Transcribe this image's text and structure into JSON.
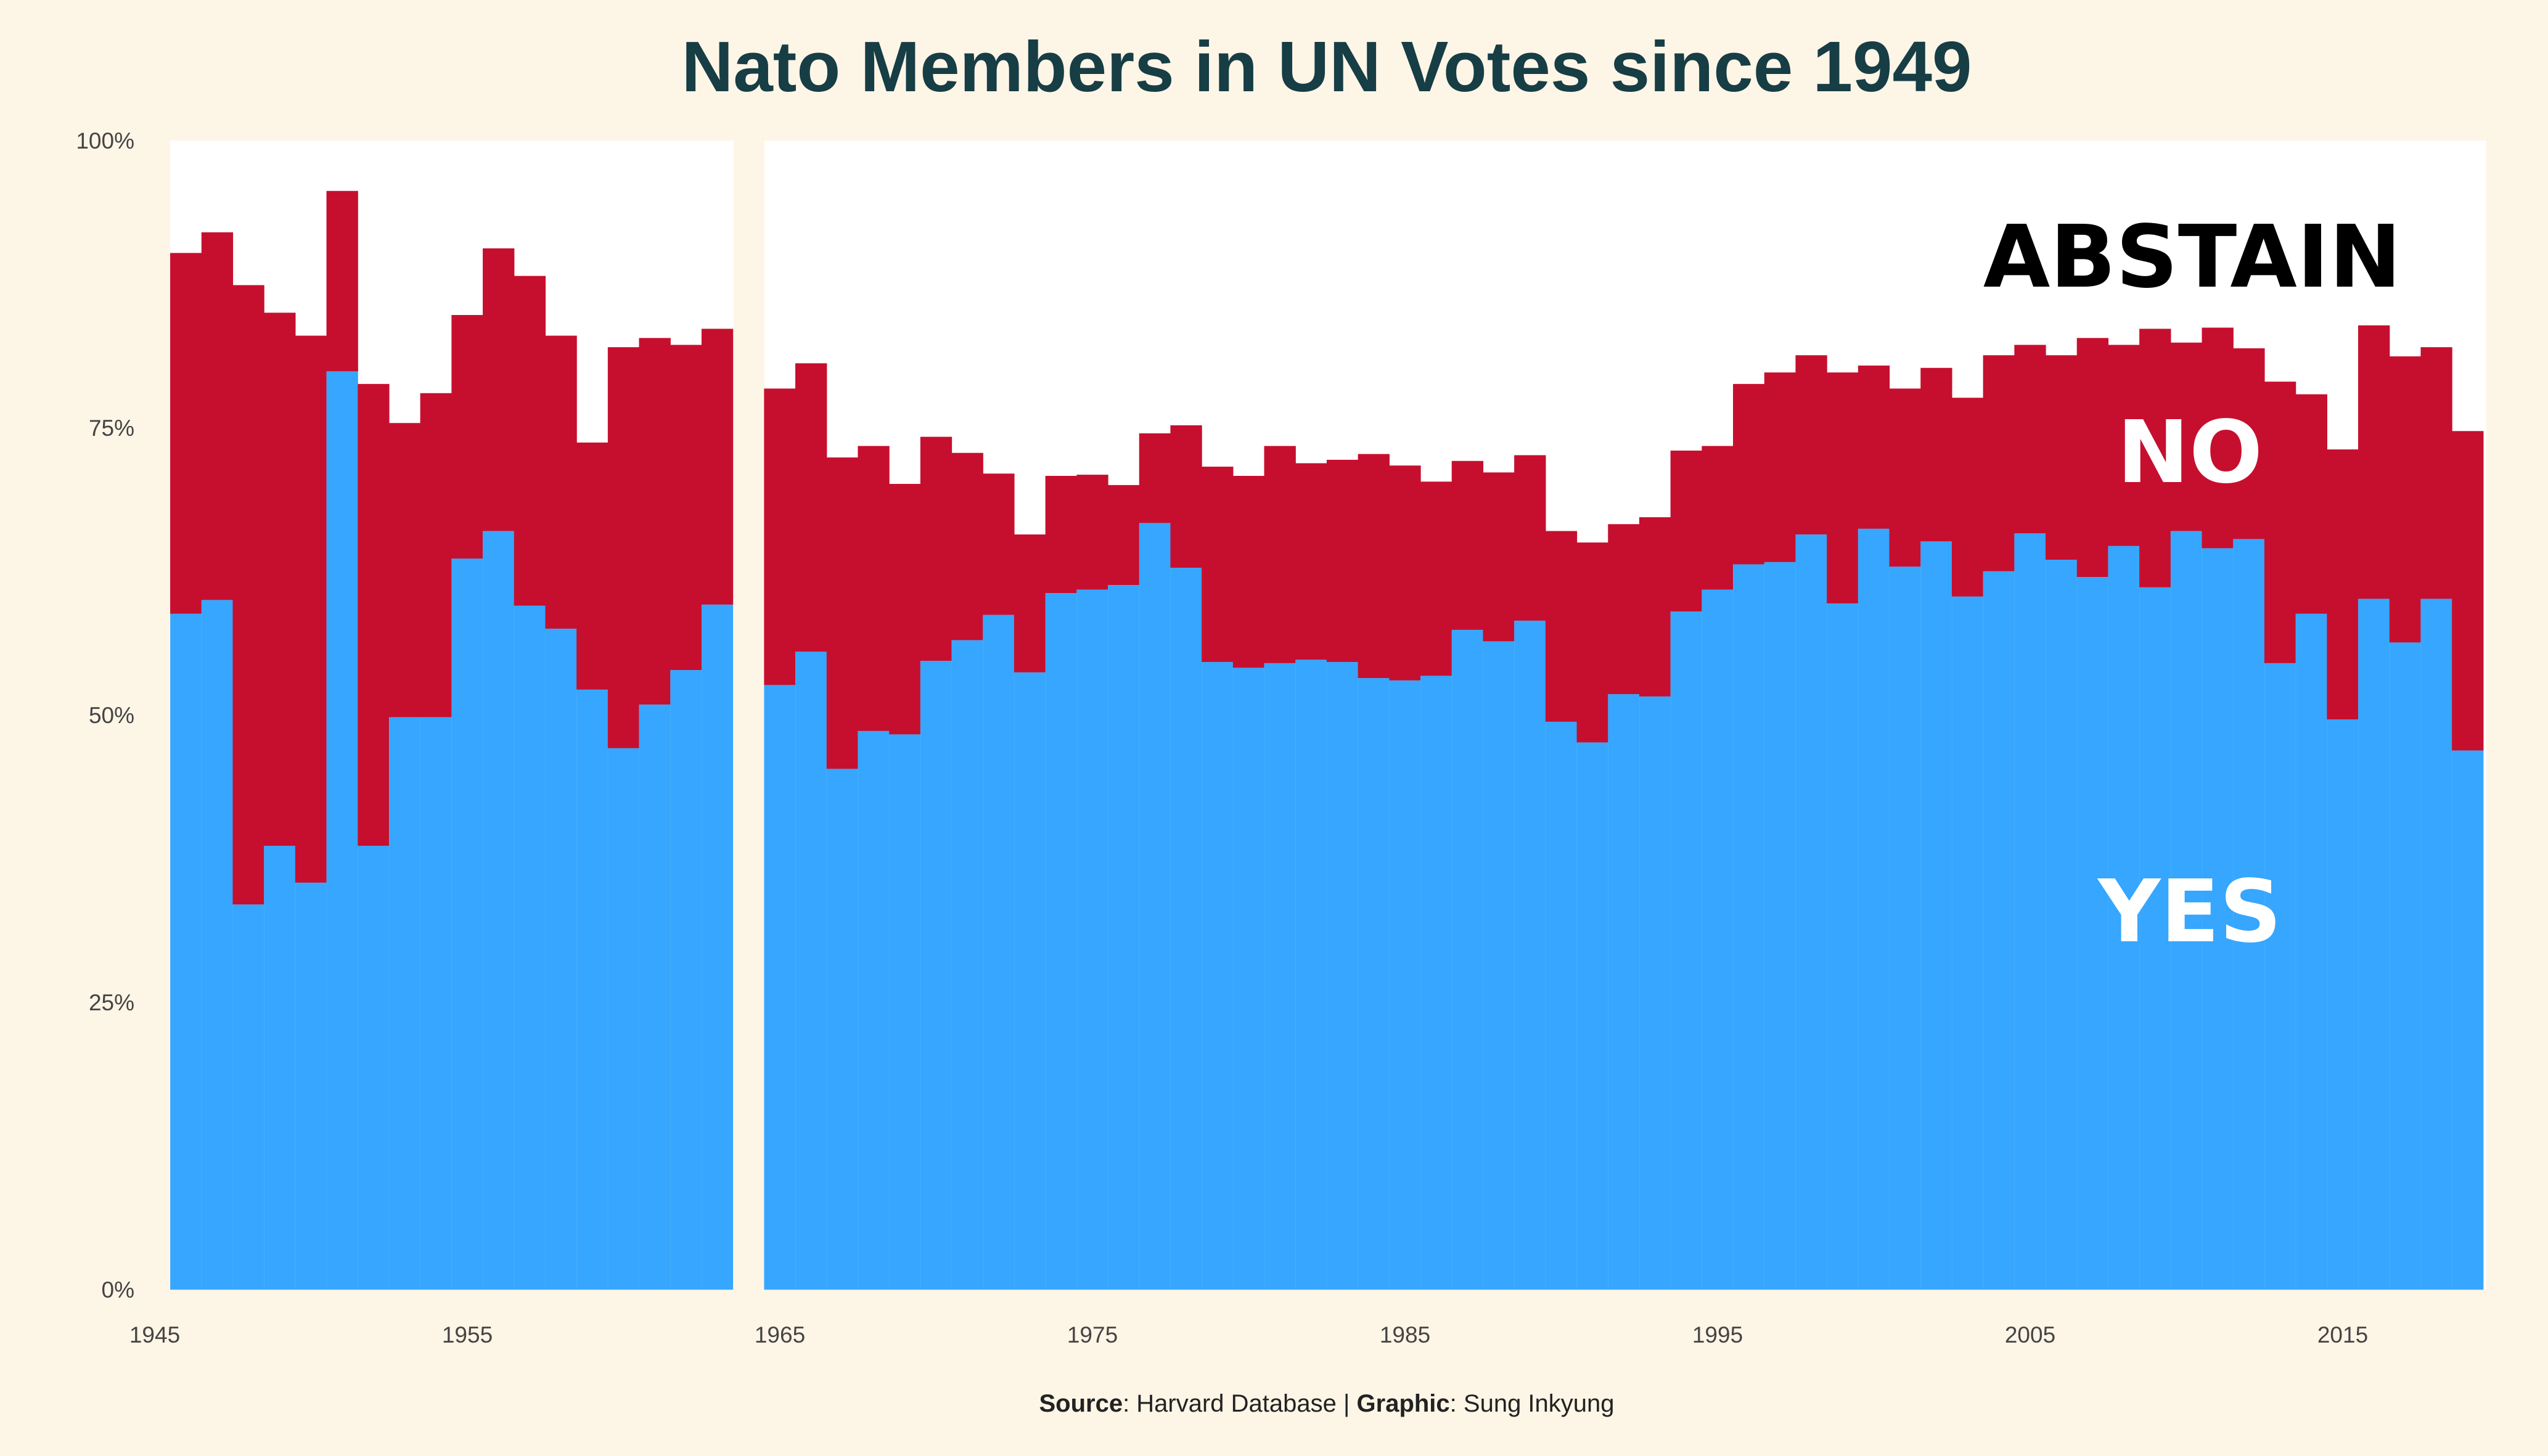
{
  "chart_data": {
    "type": "bar",
    "title": "Nato Members in UN Votes since 1949",
    "xlim": [
      1945,
      2019
    ],
    "ylim": [
      0,
      100
    ],
    "x_ticks": [
      "1945",
      "1955",
      "1965",
      "1975",
      "1985",
      "1995",
      "2005",
      "2015"
    ],
    "y_ticks": [
      "0%",
      "25%",
      "50%",
      "75%",
      "100%"
    ],
    "category_labels": {
      "yes": "YES",
      "no": "NO",
      "abstain": "ABSTAIN"
    },
    "colors": {
      "yes": "#36a6fe",
      "no": "#c60f2e",
      "abstain": "#ffffff",
      "background": "#fdf5e6",
      "title": "#173d45"
    },
    "x": [
      1946,
      1947,
      1948,
      1949,
      1950,
      1951,
      1952,
      1953,
      1954,
      1955,
      1956,
      1957,
      1958,
      1959,
      1960,
      1961,
      1962,
      1963,
      1965,
      1966,
      1967,
      1968,
      1969,
      1970,
      1971,
      1972,
      1973,
      1974,
      1975,
      1976,
      1977,
      1978,
      1979,
      1980,
      1981,
      1982,
      1983,
      1984,
      1985,
      1986,
      1987,
      1988,
      1989,
      1990,
      1991,
      1992,
      1993,
      1994,
      1995,
      1996,
      1997,
      1998,
      1999,
      2000,
      2001,
      2002,
      2003,
      2004,
      2005,
      2006,
      2007,
      2008,
      2009,
      2010,
      2011,
      2012,
      2013,
      2014,
      2015,
      2016,
      2017,
      2018,
      2019
    ],
    "series": [
      {
        "name": "YES",
        "values": [
          58.8,
          60.0,
          33.5,
          38.6,
          35.4,
          79.9,
          38.6,
          49.8,
          49.8,
          63.6,
          66.0,
          59.5,
          57.5,
          52.2,
          47.1,
          50.9,
          53.9,
          59.6,
          52.6,
          55.5,
          45.3,
          48.6,
          48.3,
          54.7,
          56.5,
          58.7,
          53.7,
          60.6,
          60.9,
          61.3,
          66.7,
          62.8,
          54.6,
          54.1,
          54.5,
          54.8,
          54.6,
          53.2,
          53.0,
          53.4,
          57.4,
          56.4,
          58.2,
          49.4,
          47.6,
          51.8,
          51.6,
          59.0,
          60.9,
          63.1,
          63.3,
          65.7,
          59.7,
          66.2,
          62.9,
          65.1,
          60.3,
          62.5,
          65.8,
          63.5,
          62.0,
          64.7,
          61.1,
          66.0,
          64.5,
          65.3,
          54.5,
          58.8,
          49.6,
          60.1,
          56.3,
          60.1,
          46.9
        ]
      },
      {
        "name": "NO",
        "values": [
          31.4,
          32.0,
          53.9,
          46.4,
          47.6,
          15.7,
          40.2,
          25.6,
          28.2,
          21.2,
          24.6,
          28.7,
          25.5,
          21.5,
          34.9,
          31.9,
          28.3,
          24.0,
          25.8,
          25.1,
          27.1,
          24.8,
          21.8,
          19.5,
          16.3,
          12.3,
          12.0,
          10.2,
          10.0,
          8.7,
          7.8,
          12.4,
          17.0,
          16.7,
          18.9,
          17.1,
          17.6,
          19.5,
          18.7,
          16.9,
          14.7,
          14.7,
          14.4,
          16.6,
          17.4,
          14.8,
          15.6,
          14.0,
          12.5,
          15.7,
          16.5,
          15.6,
          20.1,
          14.2,
          15.5,
          15.1,
          17.3,
          18.8,
          16.4,
          17.8,
          20.8,
          17.5,
          22.5,
          16.4,
          19.2,
          16.6,
          24.5,
          19.1,
          23.5,
          23.8,
          24.9,
          21.9,
          27.8
        ]
      }
    ]
  },
  "caption": {
    "source_label": "Source",
    "source_text": ": Harvard Database | ",
    "graphic_label": "Graphic",
    "graphic_text": ": Sung Inkyung"
  }
}
